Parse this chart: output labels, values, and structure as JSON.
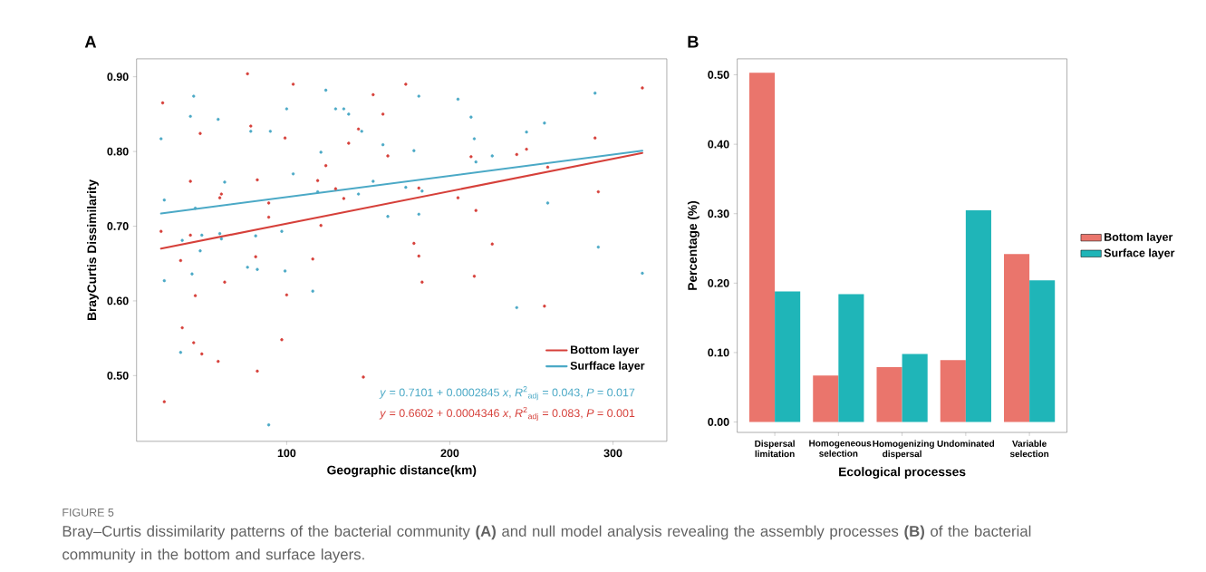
{
  "chart_data": [
    {
      "type": "scatter",
      "title": "A",
      "xlabel": "Geographic distance(km)",
      "ylabel": "BrayCurtis Dissimilarity",
      "xlim": [
        8,
        333
      ],
      "ylim": [
        0.412,
        0.924
      ],
      "xticks": [
        100,
        200,
        300
      ],
      "yticks": [
        {
          "value": 0.5,
          "label": "0.50"
        },
        {
          "value": 0.6,
          "label": "0.60"
        },
        {
          "value": 0.7,
          "label": "0.70"
        },
        {
          "value": 0.8,
          "label": "0.80"
        },
        {
          "value": 0.9,
          "label": "0.90"
        }
      ],
      "legend": "bottom right",
      "series": [
        {
          "type": "scatter",
          "color": "#d6403a",
          "marker": "circle",
          "x": [
            24,
            76,
            104,
            47,
            78,
            99,
            124,
            41,
            82,
            119,
            59,
            60,
            89,
            130,
            89,
            121,
            23,
            41,
            35,
            81,
            116,
            62,
            44,
            100,
            36,
            97,
            43,
            48,
            58,
            82,
            25,
            173,
            153,
            159,
            144,
            138,
            162,
            289,
            318,
            213,
            241,
            247,
            260,
            135,
            181,
            205,
            216,
            291,
            178,
            181,
            226,
            183,
            215,
            258,
            147
          ],
          "values": [
            0.865,
            0.904,
            0.89,
            0.824,
            0.834,
            0.818,
            0.781,
            0.76,
            0.762,
            0.761,
            0.738,
            0.743,
            0.731,
            0.75,
            0.712,
            0.701,
            0.693,
            0.688,
            0.654,
            0.659,
            0.656,
            0.625,
            0.607,
            0.608,
            0.564,
            0.548,
            0.544,
            0.529,
            0.519,
            0.506,
            0.465,
            0.89,
            0.876,
            0.85,
            0.83,
            0.811,
            0.794,
            0.818,
            0.885,
            0.793,
            0.796,
            0.803,
            0.779,
            0.737,
            0.751,
            0.738,
            0.721,
            0.746,
            0.677,
            0.66,
            0.676,
            0.625,
            0.633,
            0.593,
            0.498
          ]
        },
        {
          "type": "scatter",
          "color": "#4ba9c6",
          "marker": "circle",
          "x": [
            23,
            43,
            41,
            58,
            100,
            124,
            130,
            78,
            90,
            121,
            104,
            62,
            25,
            119,
            44,
            36,
            48,
            59,
            60,
            81,
            97,
            47,
            25,
            42,
            76,
            82,
            99,
            116,
            35,
            89,
            135,
            138,
            181,
            205,
            213,
            146,
            215,
            159,
            178,
            247,
            258,
            289,
            216,
            226,
            153,
            173,
            183,
            144,
            162,
            181,
            260,
            291,
            318,
            241
          ],
          "values": [
            0.817,
            0.874,
            0.847,
            0.843,
            0.857,
            0.882,
            0.857,
            0.827,
            0.827,
            0.799,
            0.77,
            0.759,
            0.735,
            0.746,
            0.724,
            0.681,
            0.688,
            0.69,
            0.683,
            0.687,
            0.693,
            0.667,
            0.627,
            0.636,
            0.645,
            0.642,
            0.64,
            0.613,
            0.531,
            0.434,
            0.857,
            0.85,
            0.874,
            0.87,
            0.846,
            0.827,
            0.817,
            0.809,
            0.801,
            0.826,
            0.838,
            0.878,
            0.786,
            0.794,
            0.76,
            0.752,
            0.747,
            0.743,
            0.713,
            0.716,
            0.731,
            0.672,
            0.637,
            0.591
          ]
        },
        {
          "type": "line",
          "name": "Bottom layer",
          "color": "#d6403a",
          "marker": "none",
          "x": [
            23,
            318
          ],
          "values": [
            0.67,
            0.798
          ]
        },
        {
          "type": "line",
          "name": "Surfface layer",
          "color": "#4ba9c6",
          "marker": "none",
          "x": [
            23,
            318
          ],
          "values": [
            0.717,
            0.801
          ]
        }
      ],
      "annotations": [
        "*y* = 0.7101 + 0.0002845 *x*, *R*$^{2}$$_{adj}$ = 0.043, *P* = 0.017",
        "*y* = 0.6602 + 0.0004346 *x*, *R*$^{2}$$_{adj}$ = 0.083, *P* = 0.001",
        "FIGURE 5",
        "Bray–Curtis dissimilarity patterns of the bacterial community **(A)** and null model analysis revealing the assembly processes **(B)** of the bacterial community in the bottom and surface layers."
      ]
    },
    {
      "type": "bar",
      "title": "B",
      "xlabel": "Ecological processes",
      "ylabel": "Percentage (%)",
      "categories": [
        "Dispersal limitation",
        "Homogeneous selection",
        "Homogenizing dispersal",
        "Undominated",
        "Variable selection"
      ],
      "ylim": [
        -0.015,
        0.523
      ],
      "yticks": [
        {
          "value": 0,
          "label": "0.00"
        },
        {
          "value": 0.1,
          "label": "0.10"
        },
        {
          "value": 0.2,
          "label": "0.20"
        },
        {
          "value": 0.3,
          "label": "0.30"
        },
        {
          "value": 0.4,
          "label": "0.40"
        },
        {
          "value": 0.5,
          "label": "0.50"
        }
      ],
      "legend": "right",
      "series": [
        {
          "name": "Bottom layer",
          "color": "#ea756c",
          "values": [
            0.503,
            0.067,
            0.079,
            0.089,
            0.242
          ]
        },
        {
          "name": "Surface layer",
          "color": "#1fb5b8",
          "values": [
            0.188,
            0.184,
            0.098,
            0.305,
            0.204
          ]
        }
      ]
    }
  ]
}
